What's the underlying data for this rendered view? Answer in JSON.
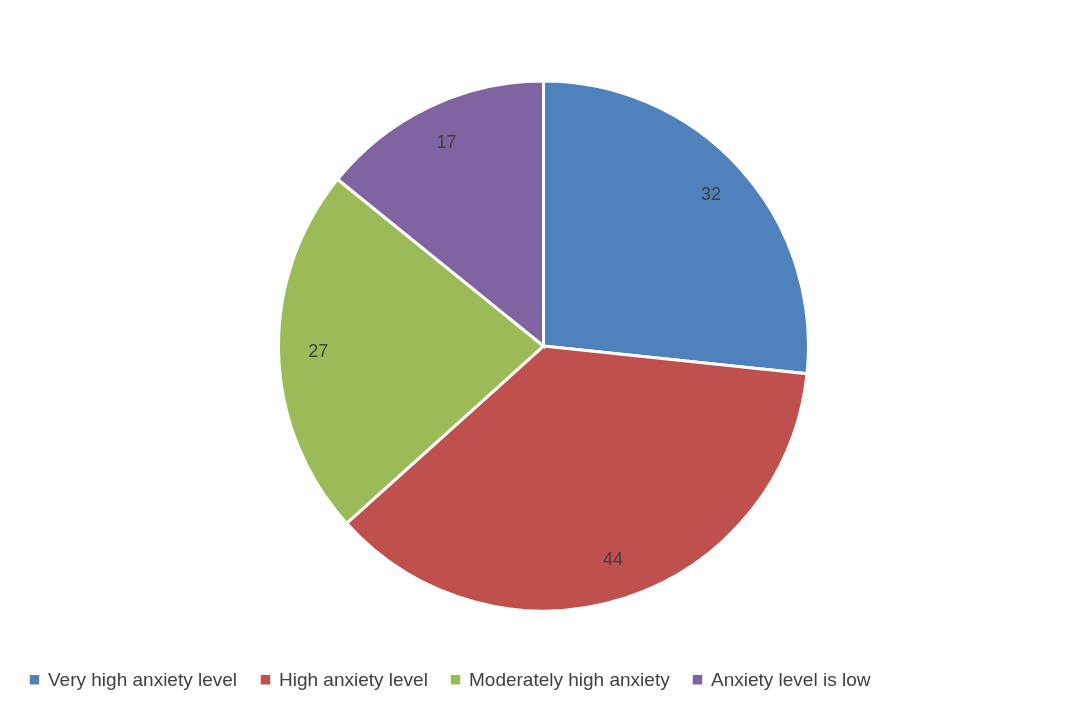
{
  "chart_data": {
    "type": "pie",
    "categories": [
      "Very high anxiety level",
      "High anxiety level",
      "Moderately high anxiety",
      "Anxiety level is low"
    ],
    "values": [
      32,
      44,
      27,
      17
    ],
    "colors": [
      "#4f81bd",
      "#c0504d",
      "#9bbb59",
      "#8064a2"
    ],
    "data_labels": true,
    "legend": "bottom"
  }
}
